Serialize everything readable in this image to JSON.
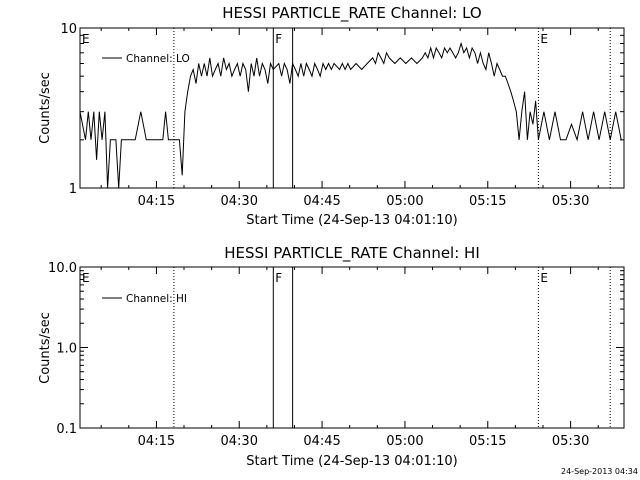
{
  "chart_data": [
    {
      "type": "line",
      "title": "HESSI PARTICLE_RATE Channel: LO",
      "xlabel": "Start Time (24-Sep-13 04:01:10)",
      "ylabel": "Counts/sec",
      "yscale": "log",
      "ylim": [
        1,
        10
      ],
      "ytick_labels": [
        "1",
        "10"
      ],
      "xlim": [
        "04:01:10",
        "05:39:40"
      ],
      "xtick_labels": [
        "04:15",
        "04:30",
        "04:45",
        "05:00",
        "05:15",
        "05:30"
      ],
      "legend": "top-left",
      "series": [
        {
          "name": "Channel: LO",
          "x_min": [
            0.0,
            1.0,
            1.5,
            2.0,
            2.5,
            3.0,
            3.5,
            4.0,
            4.5,
            5.0,
            5.5,
            6.0,
            6.5,
            7.0,
            7.5,
            8.0,
            9.0,
            10.0,
            11.0,
            12.0,
            13.0,
            14.0,
            15.0,
            15.5,
            16.0,
            17.0,
            17.5,
            18.0,
            18.5,
            19.0,
            19.5,
            20.0,
            20.5,
            21.0,
            21.5,
            22.0,
            22.5,
            23.0,
            23.5,
            24.0,
            24.5,
            25.0,
            25.5,
            26.0,
            26.5,
            27.0,
            27.5,
            28.0,
            28.5,
            29.0,
            29.5,
            30.0,
            30.5,
            31.0,
            31.5,
            32.0,
            32.5,
            33.0,
            33.5,
            34.0,
            34.5,
            35.0,
            36.0,
            36.5,
            37.0,
            37.5,
            38.0,
            38.5,
            39.0,
            39.5,
            40.0,
            40.5,
            41.0,
            41.5,
            42.0,
            42.5,
            43.0,
            43.5,
            44.0,
            44.5,
            45.0,
            45.5,
            46.0,
            47.0,
            47.5,
            48.0,
            48.5,
            49.0,
            50.0,
            51.0,
            52.0,
            53.0,
            53.5,
            54.0,
            54.5,
            55.0,
            55.5,
            56.0,
            57.0,
            58.0,
            59.0,
            60.0,
            61.0,
            62.0,
            62.5,
            63.0,
            63.5,
            64.0,
            64.5,
            65.0,
            65.5,
            66.0,
            66.5,
            67.0,
            67.5,
            68.0,
            68.5,
            69.0,
            69.5,
            70.0,
            70.5,
            71.0,
            71.5,
            72.0,
            72.5,
            73.0,
            73.5,
            74.0,
            74.5,
            75.0,
            75.5,
            76.0,
            76.5,
            77.0,
            77.5,
            78.0,
            78.5,
            79.0,
            79.5,
            80.0,
            80.5,
            81.0,
            81.5,
            82.0,
            82.5,
            83.0,
            84.0,
            85.0,
            86.0,
            87.0,
            88.0,
            89.0,
            90.0,
            91.0,
            92.0,
            93.0,
            94.0,
            95.0,
            96.0,
            97.0,
            98.0
          ],
          "values": [
            3,
            2,
            3,
            2,
            3,
            1.5,
            3,
            2,
            3,
            1,
            2,
            2,
            2,
            1,
            2,
            2,
            2,
            2,
            3,
            2,
            2,
            2,
            2,
            3,
            2,
            2,
            2,
            2,
            1.2,
            3,
            4,
            5,
            5.5,
            4.5,
            6,
            5,
            6,
            5,
            6.5,
            5,
            5.5,
            6,
            5,
            6.5,
            5.5,
            6,
            5,
            5.5,
            6,
            5,
            6,
            5.5,
            4,
            6,
            5,
            6.5,
            5,
            6,
            5.5,
            4.5,
            6,
            5.5,
            6,
            5,
            6,
            5.5,
            4.5,
            6,
            5.5,
            5,
            6,
            5,
            6,
            5.5,
            5,
            6,
            5.5,
            5,
            6,
            5.5,
            6,
            5.5,
            6,
            5.5,
            6,
            5.5,
            6,
            5.5,
            6,
            5.5,
            6,
            6.5,
            6,
            7,
            6.5,
            6,
            7,
            6.5,
            6,
            6.5,
            6,
            6.5,
            6,
            6.5,
            7,
            6.5,
            7.5,
            6.5,
            7.5,
            7,
            6.5,
            7.5,
            7,
            7.5,
            7,
            6.5,
            7,
            8,
            7,
            7.5,
            6.5,
            7.5,
            7,
            6,
            7,
            6,
            5.5,
            7,
            6,
            5,
            6,
            5.5,
            5,
            5,
            4.5,
            4,
            3.5,
            3,
            2,
            3,
            4,
            2,
            3,
            2.5,
            3.5,
            2,
            3,
            2,
            3,
            2,
            2,
            2.5,
            2,
            3,
            2,
            3,
            2,
            3,
            2,
            3,
            2,
            3,
            2,
            3
          ]
        }
      ],
      "annotations": [
        {
          "label": "E",
          "x_min": 0,
          "style": "dotted"
        },
        {
          "label": "",
          "x_min": 17.0,
          "style": "dotted"
        },
        {
          "label": "F",
          "x_min": 35.0,
          "style": "solid"
        },
        {
          "label": "",
          "x_min": 38.5,
          "style": "solid"
        },
        {
          "label": "E",
          "x_min": 83.0,
          "style": "dotted"
        },
        {
          "label": "",
          "x_min": 96.0,
          "style": "dotted"
        }
      ]
    },
    {
      "type": "line",
      "title": "HESSI PARTICLE_RATE Channel: HI",
      "xlabel": "Start Time (24-Sep-13 04:01:10)",
      "ylabel": "Counts/sec",
      "yscale": "log",
      "ylim": [
        0.1,
        10
      ],
      "ytick_labels": [
        "10.0",
        "1.0",
        "0.1"
      ],
      "xlim": [
        "04:01:10",
        "05:39:40"
      ],
      "xtick_labels": [
        "04:15",
        "04:30",
        "04:45",
        "05:00",
        "05:15",
        "05:30"
      ],
      "legend": "top-left",
      "series": [
        {
          "name": "Channel: HI",
          "x_min": [],
          "values": []
        }
      ],
      "annotations": [
        {
          "label": "E",
          "x_min": 0,
          "style": "dotted"
        },
        {
          "label": "",
          "x_min": 17.0,
          "style": "dotted"
        },
        {
          "label": "F",
          "x_min": 35.0,
          "style": "solid"
        },
        {
          "label": "",
          "x_min": 38.5,
          "style": "solid"
        },
        {
          "label": "E",
          "x_min": 83.0,
          "style": "dotted"
        },
        {
          "label": "",
          "x_min": 96.0,
          "style": "dotted"
        }
      ]
    }
  ],
  "footer": {
    "timestamp": "24-Sep-2013 04:34"
  }
}
